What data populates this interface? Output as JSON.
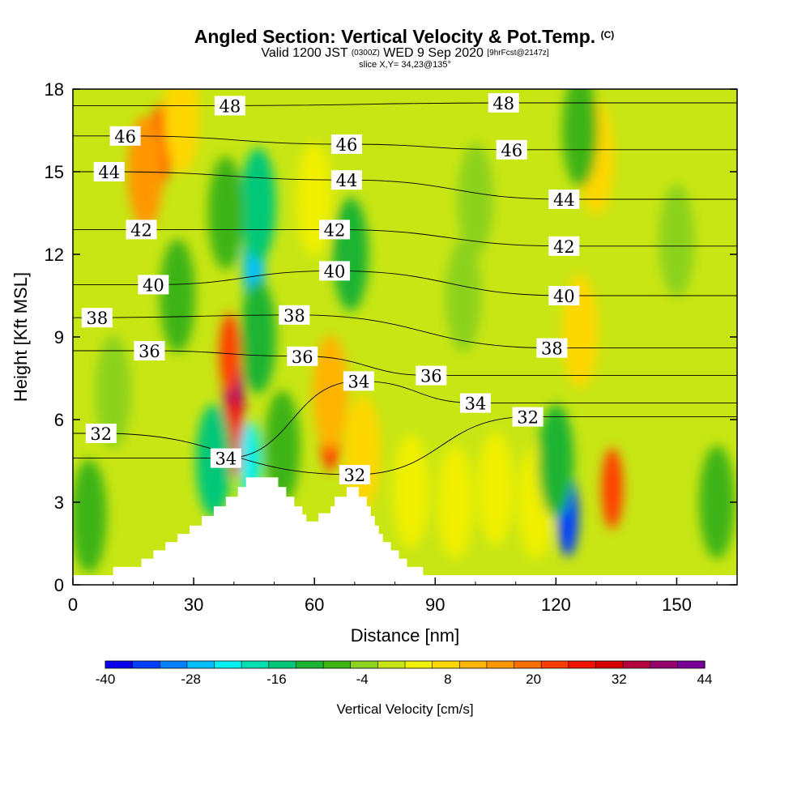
{
  "header": {
    "title": "Angled Section: Vertical Velocity & Pot.Temp.",
    "title_mark": "(C)",
    "valid_prefix": "Valid 1200 JST",
    "valid_utc": "(0300Z)",
    "valid_date": "WED 9 Sep 2020",
    "forecast_tag": "[9hrFcst@2147z]",
    "slice_info": "slice X,Y= 34,23@135°"
  },
  "chart_data": {
    "type": "heatmap",
    "xlabel": "Distance [nm]",
    "ylabel": "Height [Kft MSL]",
    "xlim": [
      0,
      165
    ],
    "ylim": [
      0,
      18
    ],
    "x_ticks": [
      0,
      30,
      60,
      90,
      120,
      150
    ],
    "y_ticks": [
      0,
      3,
      6,
      9,
      12,
      15,
      18
    ],
    "colorbar": {
      "label": "Vertical Velocity [cm/s]",
      "min": -40,
      "max": 44,
      "step": 4,
      "tick_labels": [
        -40,
        -28,
        -16,
        -4,
        8,
        20,
        32,
        44
      ],
      "colors": [
        "#0a00f0",
        "#0040ff",
        "#0080ff",
        "#00bfff",
        "#00efef",
        "#00e0b0",
        "#00c878",
        "#1ab432",
        "#3cb414",
        "#8cd21e",
        "#c8e614",
        "#f0f000",
        "#ffd700",
        "#ffb400",
        "#ff9600",
        "#ff6e00",
        "#ff3c00",
        "#f01400",
        "#d20000",
        "#b4003c",
        "#96006e",
        "#780096"
      ]
    },
    "terrain": [
      [
        0,
        0.35
      ],
      [
        10,
        0.35
      ],
      [
        10,
        0.65
      ],
      [
        17,
        0.65
      ],
      [
        17,
        0.95
      ],
      [
        20,
        0.95
      ],
      [
        20,
        1.25
      ],
      [
        23,
        1.25
      ],
      [
        23,
        1.55
      ],
      [
        26,
        1.55
      ],
      [
        26,
        1.85
      ],
      [
        29,
        1.85
      ],
      [
        29,
        2.15
      ],
      [
        32,
        2.15
      ],
      [
        32,
        2.5
      ],
      [
        35,
        2.5
      ],
      [
        35,
        2.85
      ],
      [
        38,
        2.85
      ],
      [
        38,
        3.2
      ],
      [
        41,
        3.2
      ],
      [
        41,
        3.55
      ],
      [
        43,
        3.55
      ],
      [
        43,
        3.9
      ],
      [
        51,
        3.9
      ],
      [
        51,
        3.55
      ],
      [
        53,
        3.55
      ],
      [
        53,
        3.2
      ],
      [
        55,
        3.2
      ],
      [
        55,
        2.85
      ],
      [
        57,
        2.85
      ],
      [
        57,
        2.55
      ],
      [
        58,
        2.55
      ],
      [
        58,
        2.3
      ],
      [
        61,
        2.3
      ],
      [
        61,
        2.6
      ],
      [
        64,
        2.6
      ],
      [
        64,
        2.85
      ],
      [
        65,
        2.85
      ],
      [
        65,
        3.2
      ],
      [
        68,
        3.2
      ],
      [
        68,
        3.55
      ],
      [
        71,
        3.55
      ],
      [
        71,
        3.2
      ],
      [
        73,
        3.2
      ],
      [
        73,
        2.85
      ],
      [
        74,
        2.85
      ],
      [
        74,
        2.5
      ],
      [
        75,
        2.5
      ],
      [
        75,
        2.15
      ],
      [
        76,
        2.15
      ],
      [
        76,
        1.85
      ],
      [
        77,
        1.85
      ],
      [
        77,
        1.55
      ],
      [
        79,
        1.55
      ],
      [
        79,
        1.25
      ],
      [
        81,
        1.25
      ],
      [
        81,
        0.95
      ],
      [
        83,
        0.95
      ],
      [
        83,
        0.65
      ],
      [
        87,
        0.65
      ],
      [
        87,
        0.35
      ],
      [
        165,
        0.35
      ]
    ],
    "theta_contours": [
      {
        "level": 32,
        "labels": [
          [
            7,
            5.5
          ],
          [
            113,
            6.1
          ],
          [
            70,
            4.0
          ]
        ]
      },
      {
        "level": 34,
        "labels": [
          [
            38,
            4.6
          ],
          [
            71,
            7.4
          ],
          [
            100,
            6.6
          ]
        ]
      },
      {
        "level": 36,
        "labels": [
          [
            19,
            8.5
          ],
          [
            57,
            8.3
          ],
          [
            89,
            7.6
          ]
        ]
      },
      {
        "level": 38,
        "labels": [
          [
            6,
            9.7
          ],
          [
            55,
            9.8
          ],
          [
            119,
            8.6
          ]
        ]
      },
      {
        "level": 40,
        "labels": [
          [
            20,
            10.9
          ],
          [
            65,
            11.4
          ],
          [
            122,
            10.5
          ]
        ]
      },
      {
        "level": 42,
        "labels": [
          [
            17,
            12.9
          ],
          [
            65,
            12.9
          ],
          [
            122,
            12.3
          ]
        ]
      },
      {
        "level": 44,
        "labels": [
          [
            9,
            15.0
          ],
          [
            68,
            14.7
          ],
          [
            122,
            14.0
          ]
        ]
      },
      {
        "level": 46,
        "labels": [
          [
            13,
            16.3
          ],
          [
            68,
            16.0
          ],
          [
            109,
            15.8
          ]
        ]
      },
      {
        "level": 48,
        "labels": [
          [
            39,
            17.4
          ],
          [
            107,
            17.5
          ]
        ]
      }
    ],
    "velocity_cells": [
      {
        "x": 22,
        "y": 16,
        "value": 26
      },
      {
        "x": 18,
        "y": 15,
        "value": 16
      },
      {
        "x": 27,
        "y": 17,
        "value": 10
      },
      {
        "x": 40,
        "y": 6.8,
        "value": 40
      },
      {
        "x": 39,
        "y": 8.4,
        "value": 26
      },
      {
        "x": 40,
        "y": 5.4,
        "value": 28
      },
      {
        "x": 64,
        "y": 5.6,
        "value": 26
      },
      {
        "x": 64,
        "y": 7.0,
        "value": 14
      },
      {
        "x": 134,
        "y": 3.5,
        "value": 26
      },
      {
        "x": 72,
        "y": 4.8,
        "value": 8
      },
      {
        "x": 84,
        "y": 3.4,
        "value": 6
      },
      {
        "x": 95,
        "y": 3.0,
        "value": 6
      },
      {
        "x": 105,
        "y": 3.5,
        "value": 6
      },
      {
        "x": 115,
        "y": 3.0,
        "value": 6
      },
      {
        "x": 126,
        "y": 9.2,
        "value": 8
      },
      {
        "x": 130,
        "y": 15.5,
        "value": 8
      },
      {
        "x": 60,
        "y": 14.0,
        "value": 4
      },
      {
        "x": 45,
        "y": 11.5,
        "value": -28
      },
      {
        "x": 46,
        "y": 13.8,
        "value": -16
      },
      {
        "x": 46,
        "y": 9.0,
        "value": -12
      },
      {
        "x": 44,
        "y": 4.5,
        "value": -24
      },
      {
        "x": 35,
        "y": 4.5,
        "value": -14
      },
      {
        "x": 123,
        "y": 2.5,
        "value": -34
      },
      {
        "x": 120,
        "y": 4.5,
        "value": -10
      },
      {
        "x": 69,
        "y": 12.0,
        "value": -10
      },
      {
        "x": 4,
        "y": 2.5,
        "value": -8
      },
      {
        "x": 26,
        "y": 10.5,
        "value": -8
      },
      {
        "x": 126,
        "y": 16.5,
        "value": -6
      },
      {
        "x": 38,
        "y": 13.5,
        "value": -6
      },
      {
        "x": 150,
        "y": 12.5,
        "value": -4
      },
      {
        "x": 100,
        "y": 14.0,
        "value": -4
      },
      {
        "x": 160,
        "y": 3.0,
        "value": -6
      },
      {
        "x": 97,
        "y": 10.5,
        "value": -2
      },
      {
        "x": 10,
        "y": 7.0,
        "value": -4
      },
      {
        "x": 52,
        "y": 5.0,
        "value": -6
      }
    ]
  }
}
